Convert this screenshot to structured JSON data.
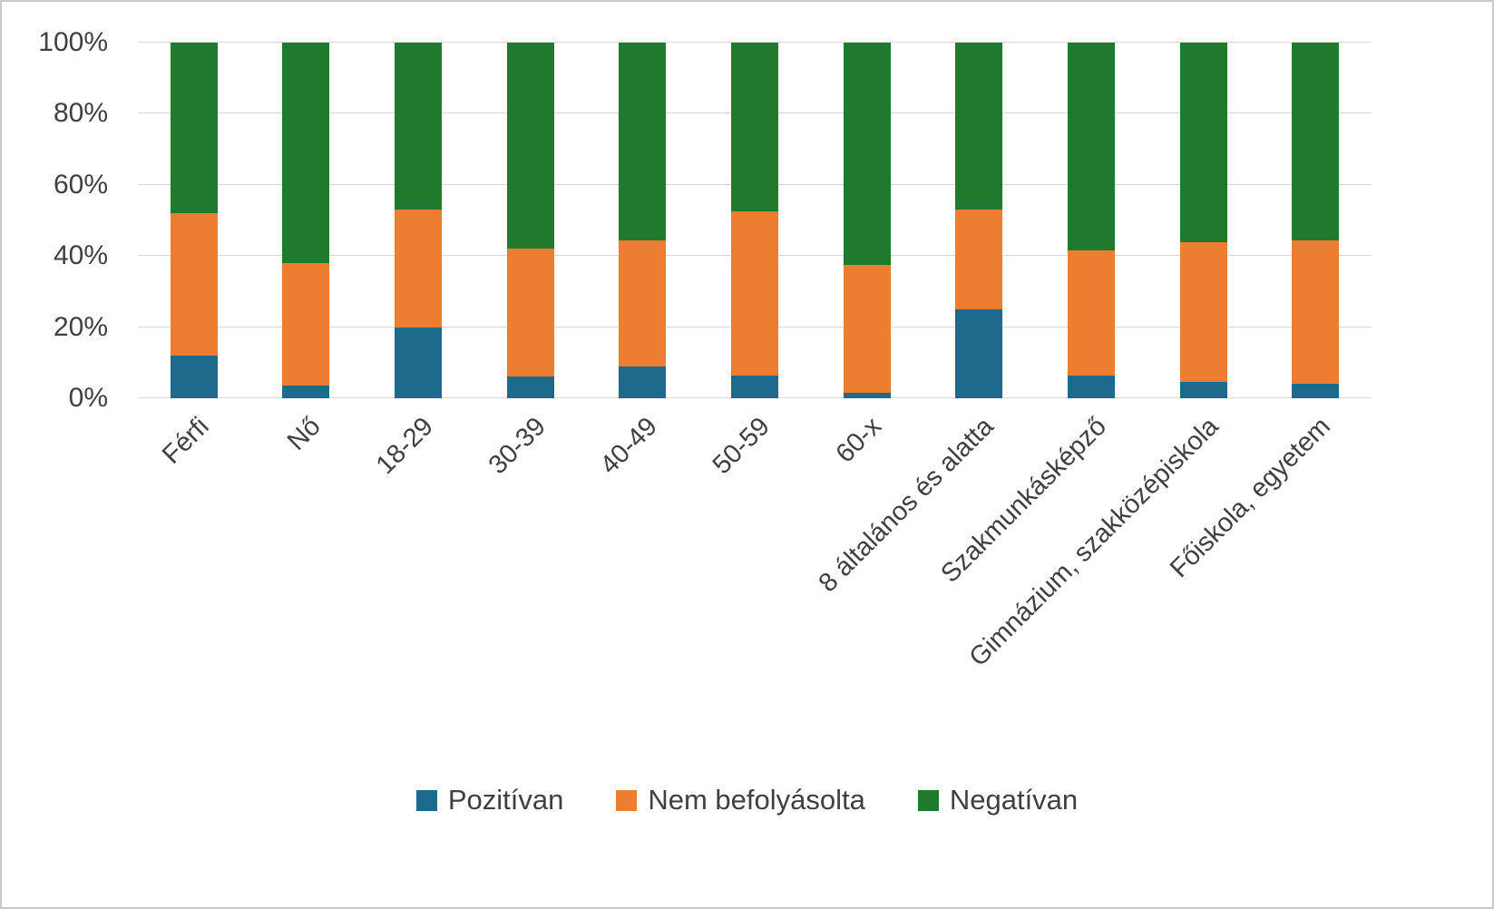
{
  "chart_data": {
    "type": "bar",
    "stacked": true,
    "percent_stacked": true,
    "title": "",
    "xlabel": "",
    "ylabel": "",
    "ylim": [
      0,
      100
    ],
    "yticks": [
      "0%",
      "20%",
      "40%",
      "60%",
      "80%",
      "100%"
    ],
    "grid": true,
    "legend_position": "bottom",
    "categories": [
      "Férfi",
      "Nő",
      "18-29",
      "30-39",
      "40-49",
      "50-59",
      "60-x",
      "8 általános és alatta",
      "Szakmunkásképző",
      "Gimnázium, szakközépiskola",
      "Főiskola, egyetem"
    ],
    "series": [
      {
        "name": "Pozitívan",
        "color": "#1d6a8d",
        "values": [
          12,
          3.5,
          20,
          6,
          9,
          6.5,
          1.5,
          25,
          6.5,
          4.5,
          4
        ]
      },
      {
        "name": "Nem befolyásolta",
        "color": "#ed7d31",
        "values": [
          40,
          34.5,
          33,
          36,
          35.5,
          46,
          36,
          28,
          35,
          39.5,
          40.5
        ]
      },
      {
        "name": "Negatívan",
        "color": "#1f7a2e",
        "values": [
          48,
          62,
          47,
          58,
          55.5,
          47.5,
          62.5,
          47,
          58.5,
          56,
          55.5
        ]
      }
    ]
  }
}
